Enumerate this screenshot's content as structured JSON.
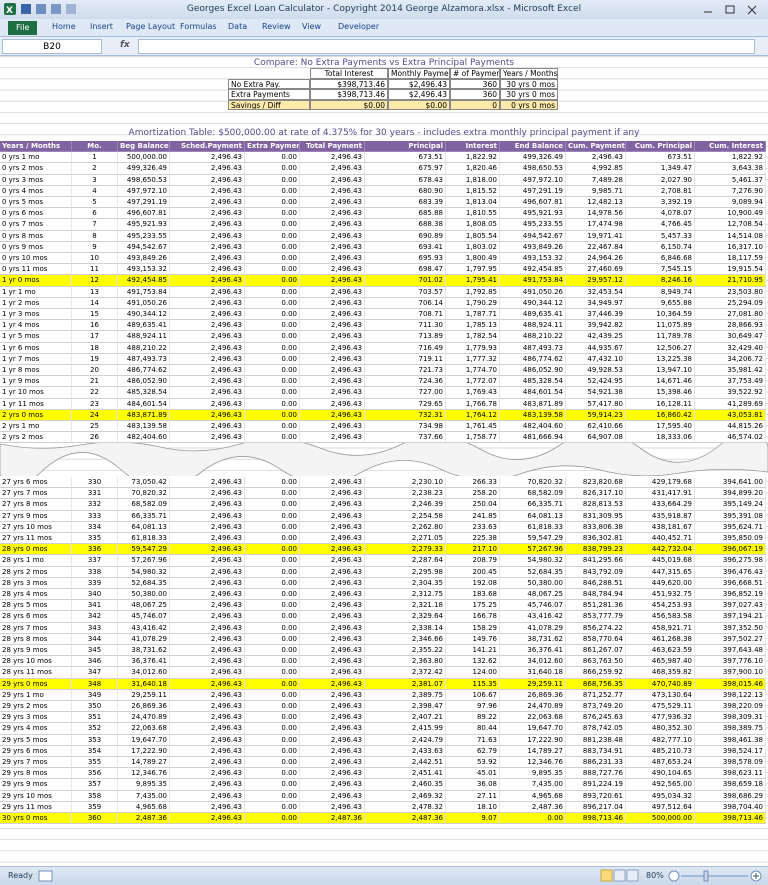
{
  "window": {
    "title": "Georges Excel Loan Calculator - Copyright 2014 George Alzamora.xlsx  -  Microsoft Excel",
    "tabs": [
      "File",
      "Home",
      "Insert",
      "Page Layout",
      "Formulas",
      "Data",
      "Review",
      "View",
      "Developer"
    ],
    "name_box": "B20",
    "formula_icon": "fx",
    "status": "Ready",
    "zoom": "80%"
  },
  "compare": {
    "title": "Compare: No Extra Payments vs Extra Principal Payments",
    "headers": [
      "Total Interest",
      "Monthly Payment",
      "# of Payments",
      "Years / Months"
    ],
    "rows": [
      {
        "label": "No Extra Pay.",
        "cells": [
          "$398,713.46",
          "$2,496.43",
          "360",
          "30 yrs 0 mos"
        ]
      },
      {
        "label": "Extra Payments",
        "cells": [
          "$398,713.46",
          "$2,496.43",
          "360",
          "30 yrs 0 mos"
        ]
      },
      {
        "label": "Savings / Diff",
        "cells": [
          "$0.00",
          "$0.00",
          "0",
          "0 yrs 0 mos"
        ],
        "fill": "#fde9a9"
      }
    ]
  },
  "amortization": {
    "title": "Amortization Table:  $500,000.00 at rate of 4.375% for 30 years - includes extra monthly principal payment if any",
    "headers": [
      "Years / Months",
      "Mo.",
      "Beg Balance",
      "Sched.Payment",
      "Extra Payment",
      "Total Payment",
      "Principal",
      "Interest",
      "End Balance",
      "Cum. Payment",
      "Cum. Principal",
      "Cum. Interest"
    ],
    "rows_top": [
      {
        "cells": [
          "0 yrs 1 mo",
          "1",
          "500,000.00",
          "2,496.43",
          "0.00",
          "2,496.43",
          "673.51",
          "1,822.92",
          "499,326.49",
          "2,496.43",
          "673.51",
          "1,822.92"
        ]
      },
      {
        "cells": [
          "0 yrs 2 mos",
          "2",
          "499,326.49",
          "2,496.43",
          "0.00",
          "2,496.43",
          "675.97",
          "1,820.46",
          "498,650.53",
          "4,992.85",
          "1,349.47",
          "3,643.38"
        ]
      },
      {
        "cells": [
          "0 yrs 3 mos",
          "3",
          "498,650.53",
          "2,496.43",
          "0.00",
          "2,496.43",
          "678.43",
          "1,818.00",
          "497,972.10",
          "7,489.28",
          "2,027.90",
          "5,461.37"
        ]
      },
      {
        "cells": [
          "0 yrs 4 mos",
          "4",
          "497,972.10",
          "2,496.43",
          "0.00",
          "2,496.43",
          "680.90",
          "1,815.52",
          "497,291.19",
          "9,985.71",
          "2,708.81",
          "7,276.90"
        ]
      },
      {
        "cells": [
          "0 yrs 5 mos",
          "5",
          "497,291.19",
          "2,496.43",
          "0.00",
          "2,496.43",
          "683.39",
          "1,813.04",
          "496,607.81",
          "12,482.13",
          "3,392.19",
          "9,089.94"
        ]
      },
      {
        "cells": [
          "0 yrs 6 mos",
          "6",
          "496,607.81",
          "2,496.43",
          "0.00",
          "2,496.43",
          "685.88",
          "1,810.55",
          "495,921.93",
          "14,978.56",
          "4,078.07",
          "10,900.49"
        ]
      },
      {
        "cells": [
          "0 yrs 7 mos",
          "7",
          "495,921.93",
          "2,496.43",
          "0.00",
          "2,496.43",
          "688.38",
          "1,808.05",
          "495,233.55",
          "17,474.98",
          "4,766.45",
          "12,708.54"
        ]
      },
      {
        "cells": [
          "0 yrs 8 mos",
          "8",
          "495,233.55",
          "2,496.43",
          "0.00",
          "2,496.43",
          "690.89",
          "1,805.54",
          "494,542.67",
          "19,971.41",
          "5,457.33",
          "14,514.08"
        ]
      },
      {
        "cells": [
          "0 yrs 9 mos",
          "9",
          "494,542.67",
          "2,496.43",
          "0.00",
          "2,496.43",
          "693.41",
          "1,803.02",
          "493,849.26",
          "22,467.84",
          "6,150.74",
          "16,317.10"
        ]
      },
      {
        "cells": [
          "0 yrs 10 mos",
          "10",
          "493,849.26",
          "2,496.43",
          "0.00",
          "2,496.43",
          "695.93",
          "1,800.49",
          "493,153.32",
          "24,964.26",
          "6,846.68",
          "18,117.59"
        ]
      },
      {
        "cells": [
          "0 yrs 11 mos",
          "11",
          "493,153.32",
          "2,496.43",
          "0.00",
          "2,496.43",
          "698.47",
          "1,797.95",
          "492,454.85",
          "27,460.69",
          "7,545.15",
          "19,915.54"
        ]
      },
      {
        "cells": [
          "1 yr 0 mos",
          "12",
          "492,454.85",
          "2,496.43",
          "0.00",
          "2,496.43",
          "701.02",
          "1,795.41",
          "491,753.84",
          "29,957.12",
          "8,246.16",
          "21,710.95"
        ],
        "fill": "#ffff00"
      },
      {
        "cells": [
          "1 yr 1 mo",
          "13",
          "491,753.84",
          "2,496.43",
          "0.00",
          "2,496.43",
          "703.57",
          "1,792.85",
          "491,050.26",
          "32,453.54",
          "8,949.74",
          "23,503.80"
        ]
      },
      {
        "cells": [
          "1 yr 2 mos",
          "14",
          "491,050.26",
          "2,496.43",
          "0.00",
          "2,496.43",
          "706.14",
          "1,790.29",
          "490,344.12",
          "34,949.97",
          "9,655.88",
          "25,294.09"
        ]
      },
      {
        "cells": [
          "1 yr 3 mos",
          "15",
          "490,344.12",
          "2,496.43",
          "0.00",
          "2,496.43",
          "708.71",
          "1,787.71",
          "489,635.41",
          "37,446.39",
          "10,364.59",
          "27,081.80"
        ]
      },
      {
        "cells": [
          "1 yr 4 mos",
          "16",
          "489,635.41",
          "2,496.43",
          "0.00",
          "2,496.43",
          "711.30",
          "1,785.13",
          "488,924.11",
          "39,942.82",
          "11,075.89",
          "28,866.93"
        ]
      },
      {
        "cells": [
          "1 yr 5 mos",
          "17",
          "488,924.11",
          "2,496.43",
          "0.00",
          "2,496.43",
          "713.89",
          "1,782.54",
          "488,210.22",
          "42,439.25",
          "11,789.78",
          "30,649.47"
        ]
      },
      {
        "cells": [
          "1 yr 6 mos",
          "18",
          "488,210.22",
          "2,496.43",
          "0.00",
          "2,496.43",
          "716.49",
          "1,779.93",
          "487,493.73",
          "44,935.67",
          "12,506.27",
          "32,429.40"
        ]
      },
      {
        "cells": [
          "1 yr 7 mos",
          "19",
          "487,493.73",
          "2,496.43",
          "0.00",
          "2,496.43",
          "719.11",
          "1,777.32",
          "486,774.62",
          "47,432.10",
          "13,225.38",
          "34,206.72"
        ]
      },
      {
        "cells": [
          "1 yr 8 mos",
          "20",
          "486,774.62",
          "2,496.43",
          "0.00",
          "2,496.43",
          "721.73",
          "1,774.70",
          "486,052.90",
          "49,928.53",
          "13,947.10",
          "35,981.42"
        ]
      },
      {
        "cells": [
          "1 yr 9 mos",
          "21",
          "486,052.90",
          "2,496.43",
          "0.00",
          "2,496.43",
          "724.36",
          "1,772.07",
          "485,328.54",
          "52,424.95",
          "14,671.46",
          "37,753.49"
        ]
      },
      {
        "cells": [
          "1 yr 10 mos",
          "22",
          "485,328.54",
          "2,496.43",
          "0.00",
          "2,496.43",
          "727.00",
          "1,769.43",
          "484,601.54",
          "54,921.38",
          "15,398.46",
          "39,522.92"
        ]
      },
      {
        "cells": [
          "1 yr 11 mos",
          "23",
          "484,601.54",
          "2,496.43",
          "0.00",
          "2,496.43",
          "729.65",
          "1,766.78",
          "483,871.89",
          "57,417.80",
          "16,128.11",
          "41,289.69"
        ]
      },
      {
        "cells": [
          "2 yrs 0 mos",
          "24",
          "483,871.89",
          "2,496.43",
          "0.00",
          "2,496.43",
          "732.31",
          "1,764.12",
          "483,139.58",
          "59,914.23",
          "16,860.42",
          "43,053.81"
        ],
        "fill": "#ffff00"
      },
      {
        "cells": [
          "2 yrs 1 mo",
          "25",
          "483,139.58",
          "2,496.43",
          "0.00",
          "2,496.43",
          "734.98",
          "1,761.45",
          "482,404.60",
          "62,410.66",
          "17,595.40",
          "44,815.26"
        ]
      },
      {
        "cells": [
          "2 yrs 2 mos",
          "26",
          "482,404.60",
          "2,496.43",
          "0.00",
          "2,496.43",
          "737.66",
          "1,758.77",
          "481,666.94",
          "64,907.08",
          "18,333.06",
          "46,574.02"
        ]
      }
    ],
    "rows_bottom": [
      {
        "cells": [
          "27 yrs 6 mos",
          "330",
          "73,050.42",
          "2,496.43",
          "0.00",
          "2,496.43",
          "2,230.10",
          "266.33",
          "70,820.32",
          "823,820.68",
          "429,179.68",
          "394,641.00"
        ]
      },
      {
        "cells": [
          "27 yrs 7 mos",
          "331",
          "70,820.32",
          "2,496.43",
          "0.00",
          "2,496.43",
          "2,238.23",
          "258.20",
          "68,582.09",
          "826,317.10",
          "431,417.91",
          "394,899.20"
        ]
      },
      {
        "cells": [
          "27 yrs 8 mos",
          "332",
          "68,582.09",
          "2,496.43",
          "0.00",
          "2,496.43",
          "2,246.39",
          "250.04",
          "66,335.71",
          "828,813.53",
          "433,664.29",
          "395,149.24"
        ]
      },
      {
        "cells": [
          "27 yrs 9 mos",
          "333",
          "66,335.71",
          "2,496.43",
          "0.00",
          "2,496.43",
          "2,254.58",
          "241.85",
          "64,081.13",
          "831,309.95",
          "435,918.87",
          "395,391.08"
        ]
      },
      {
        "cells": [
          "27 yrs 10 mos",
          "334",
          "64,081.13",
          "2,496.43",
          "0.00",
          "2,496.43",
          "2,262.80",
          "233.63",
          "61,818.33",
          "833,806.38",
          "438,181.67",
          "395,624.71"
        ]
      },
      {
        "cells": [
          "27 yrs 11 mos",
          "335",
          "61,818.33",
          "2,496.43",
          "0.00",
          "2,496.43",
          "2,271.05",
          "225.38",
          "59,547.29",
          "836,302.81",
          "440,452.71",
          "395,850.09"
        ]
      },
      {
        "cells": [
          "28 yrs 0 mos",
          "336",
          "59,547.29",
          "2,496.43",
          "0.00",
          "2,496.43",
          "2,279.33",
          "217.10",
          "57,267.96",
          "838,799.23",
          "442,732.04",
          "396,067.19"
        ],
        "fill": "#ffff00"
      },
      {
        "cells": [
          "28 yrs 1 mo",
          "337",
          "57,267.96",
          "2,496.43",
          "0.00",
          "2,496.43",
          "2,287.64",
          "208.79",
          "54,980.32",
          "841,295.66",
          "445,019.68",
          "396,275.98"
        ]
      },
      {
        "cells": [
          "28 yrs 2 mos",
          "338",
          "54,980.32",
          "2,496.43",
          "0.00",
          "2,496.43",
          "2,295.98",
          "200.45",
          "52,684.35",
          "843,792.09",
          "447,315.65",
          "396,476.43"
        ]
      },
      {
        "cells": [
          "28 yrs 3 mos",
          "339",
          "52,684.35",
          "2,496.43",
          "0.00",
          "2,496.43",
          "2,304.35",
          "192.08",
          "50,380.00",
          "846,288.51",
          "449,620.00",
          "396,668.51"
        ]
      },
      {
        "cells": [
          "28 yrs 4 mos",
          "340",
          "50,380.00",
          "2,496.43",
          "0.00",
          "2,496.43",
          "2,312.75",
          "183.68",
          "48,067.25",
          "848,784.94",
          "451,932.75",
          "396,852.19"
        ]
      },
      {
        "cells": [
          "28 yrs 5 mos",
          "341",
          "48,067.25",
          "2,496.43",
          "0.00",
          "2,496.43",
          "2,321.18",
          "175.25",
          "45,746.07",
          "851,281.36",
          "454,253.93",
          "397,027.43"
        ]
      },
      {
        "cells": [
          "28 yrs 6 mos",
          "342",
          "45,746.07",
          "2,496.43",
          "0.00",
          "2,496.43",
          "2,329.64",
          "166.78",
          "43,416.42",
          "853,777.79",
          "456,583.58",
          "397,194.21"
        ]
      },
      {
        "cells": [
          "28 yrs 7 mos",
          "343",
          "43,416.42",
          "2,496.43",
          "0.00",
          "2,496.43",
          "2,338.14",
          "158.29",
          "41,078.29",
          "856,274.22",
          "458,921.71",
          "397,352.50"
        ]
      },
      {
        "cells": [
          "28 yrs 8 mos",
          "344",
          "41,078.29",
          "2,496.43",
          "0.00",
          "2,496.43",
          "2,346.66",
          "149.76",
          "38,731.62",
          "858,770.64",
          "461,268.38",
          "397,502.27"
        ]
      },
      {
        "cells": [
          "28 yrs 9 mos",
          "345",
          "38,731.62",
          "2,496.43",
          "0.00",
          "2,496.43",
          "2,355.22",
          "141.21",
          "36,376.41",
          "861,267.07",
          "463,623.59",
          "397,643.48"
        ]
      },
      {
        "cells": [
          "28 yrs 10 mos",
          "346",
          "36,376.41",
          "2,496.43",
          "0.00",
          "2,496.43",
          "2,363.80",
          "132.62",
          "34,012.60",
          "863,763.50",
          "465,987.40",
          "397,776.10"
        ]
      },
      {
        "cells": [
          "28 yrs 11 mos",
          "347",
          "34,012.60",
          "2,496.43",
          "0.00",
          "2,496.43",
          "2,372.42",
          "124.00",
          "31,640.18",
          "866,259.92",
          "468,359.82",
          "397,900.10"
        ]
      },
      {
        "cells": [
          "29 yrs 0 mos",
          "348",
          "31,640.18",
          "2,496.43",
          "0.00",
          "2,496.43",
          "2,381.07",
          "115.35",
          "29,259.11",
          "868,756.35",
          "470,740.89",
          "398,015.46"
        ],
        "fill": "#ffff00"
      },
      {
        "cells": [
          "29 yrs 1 mo",
          "349",
          "29,259.11",
          "2,496.43",
          "0.00",
          "2,496.43",
          "2,389.75",
          "106.67",
          "26,869.36",
          "871,252.77",
          "473,130.64",
          "398,122.13"
        ]
      },
      {
        "cells": [
          "29 yrs 2 mos",
          "350",
          "26,869.36",
          "2,496.43",
          "0.00",
          "2,496.43",
          "2,398.47",
          "97.96",
          "24,470.89",
          "873,749.20",
          "475,529.11",
          "398,220.09"
        ]
      },
      {
        "cells": [
          "29 yrs 3 mos",
          "351",
          "24,470.89",
          "2,496.43",
          "0.00",
          "2,496.43",
          "2,407.21",
          "89.22",
          "22,063.68",
          "876,245.63",
          "477,936.32",
          "398,309.31"
        ]
      },
      {
        "cells": [
          "29 yrs 4 mos",
          "352",
          "22,063.68",
          "2,496.43",
          "0.00",
          "2,496.43",
          "2,415.99",
          "80.44",
          "19,647.70",
          "878,742.05",
          "480,352.30",
          "398,389.75"
        ]
      },
      {
        "cells": [
          "29 yrs 5 mos",
          "353",
          "19,647.70",
          "2,496.43",
          "0.00",
          "2,496.43",
          "2,424.79",
          "71.63",
          "17,222.90",
          "881,238.48",
          "482,777.10",
          "398,461.38"
        ]
      },
      {
        "cells": [
          "29 yrs 6 mos",
          "354",
          "17,222.90",
          "2,496.43",
          "0.00",
          "2,496.43",
          "2,433.63",
          "62.79",
          "14,789.27",
          "883,734.91",
          "485,210.73",
          "398,524.17"
        ]
      },
      {
        "cells": [
          "29 yrs 7 mos",
          "355",
          "14,789.27",
          "2,496.43",
          "0.00",
          "2,496.43",
          "2,442.51",
          "53.92",
          "12,346.76",
          "886,231.33",
          "487,653.24",
          "398,578.09"
        ]
      },
      {
        "cells": [
          "29 yrs 8 mos",
          "356",
          "12,346.76",
          "2,496.43",
          "0.00",
          "2,496.43",
          "2,451.41",
          "45.01",
          "9,895.35",
          "888,727.76",
          "490,104.65",
          "398,623.11"
        ]
      },
      {
        "cells": [
          "29 yrs 9 mos",
          "357",
          "9,895.35",
          "2,496.43",
          "0.00",
          "2,496.43",
          "2,460.35",
          "36.08",
          "7,435.00",
          "891,224.19",
          "492,565.00",
          "398,659.18"
        ]
      },
      {
        "cells": [
          "29 yrs 10 mos",
          "358",
          "7,435.00",
          "2,496.43",
          "0.00",
          "2,496.43",
          "2,469.32",
          "27.11",
          "4,965.68",
          "893,720.61",
          "495,034.32",
          "398,686.29"
        ]
      },
      {
        "cells": [
          "29 yrs 11 mos",
          "359",
          "4,965.68",
          "2,496.43",
          "0.00",
          "2,496.43",
          "2,478.32",
          "18.10",
          "2,487.36",
          "896,217.04",
          "497,512.64",
          "398,704.40"
        ]
      },
      {
        "cells": [
          "30 yrs 0 mos",
          "360",
          "2,487.36",
          "2,496.43",
          "0.00",
          "2,487.36",
          "2,487.36",
          "9.07",
          "0.00",
          "898,713.46",
          "500,000.00",
          "398,713.46"
        ],
        "fill": "#ffff00"
      }
    ]
  }
}
